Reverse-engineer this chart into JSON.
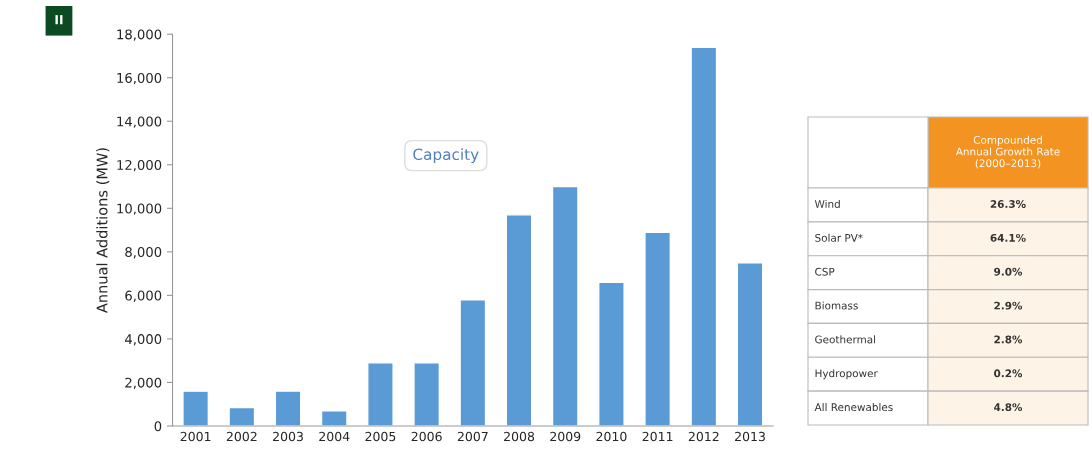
{
  "chart_data": [
    {
      "type": "bar",
      "ylabel": "Annual Additions (MW)",
      "categories": [
        "2001",
        "2002",
        "2003",
        "2004",
        "2005",
        "2006",
        "2007",
        "2008",
        "2009",
        "2010",
        "2011",
        "2012",
        "2013"
      ],
      "values": [
        1600,
        850,
        1600,
        700,
        2900,
        2900,
        5800,
        9700,
        11000,
        6600,
        8900,
        17400,
        7500
      ],
      "color": "#5b9bd5",
      "ylim": [
        0,
        18000
      ],
      "yticks": [
        {
          "value": 0,
          "label": "0"
        },
        {
          "value": 2000,
          "label": "2,000"
        },
        {
          "value": 4000,
          "label": "4,000"
        },
        {
          "value": 6000,
          "label": "6,000"
        },
        {
          "value": 8000,
          "label": "8,000"
        },
        {
          "value": 10000,
          "label": "10,000"
        },
        {
          "value": 12000,
          "label": "12,000"
        },
        {
          "value": 14000,
          "label": "14,000"
        },
        {
          "value": 16000,
          "label": "16,000"
        },
        {
          "value": 18000,
          "label": "18,000"
        }
      ],
      "grid": false,
      "legend": false,
      "annotations": [
        "II",
        "Capacity"
      ]
    },
    {
      "type": "other",
      "annotations": [
        "Compounded Annual Growth Rate (2000–2013)",
        "Wind",
        "26.3%",
        "Solar PV*",
        "64.1%",
        "CSP",
        "9.0%",
        "Biomass",
        "2.9%",
        "Geothermal",
        "2.8%",
        "Hydropower",
        "0.2%",
        "All Renewables",
        "4.8%"
      ]
    }
  ]
}
